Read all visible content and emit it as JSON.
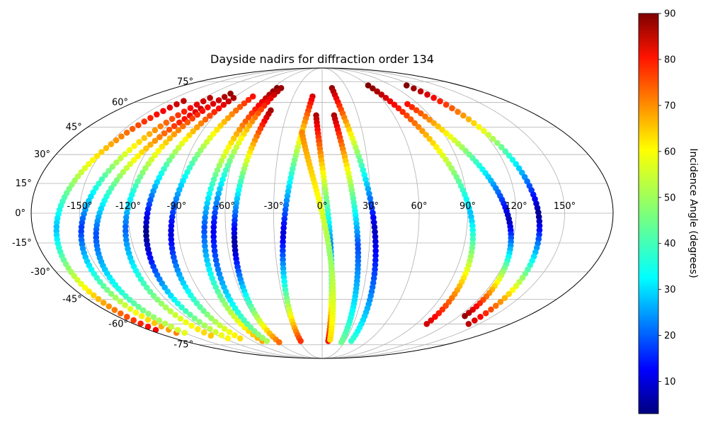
{
  "chart_data": {
    "type": "scatter",
    "projection": "mollweide",
    "title": "Dayside nadirs for diffraction order 134",
    "grid": true,
    "colormap": "jet",
    "colorbar": {
      "label": "Incidence Angle (degrees)",
      "range": [
        3,
        90
      ],
      "ticks": [
        10,
        20,
        30,
        40,
        50,
        60,
        70,
        80,
        90
      ]
    },
    "longitude_ticks": [
      -150,
      -120,
      -90,
      -60,
      -30,
      0,
      30,
      60,
      90,
      120,
      150
    ],
    "latitude_ticks": [
      -75,
      -60,
      -45,
      -30,
      -15,
      0,
      15,
      30,
      45,
      60,
      75
    ],
    "longitude_tick_labels": [
      "-150°",
      "-120°",
      "-90°",
      "-60°",
      "-30°",
      "0°",
      "30°",
      "60°",
      "90°",
      "120°",
      "150°"
    ],
    "latitude_tick_labels": [
      "-75°",
      "-60°",
      "-45°",
      "-30°",
      "-15°",
      "0°",
      "15°",
      "30°",
      "45°",
      "60°",
      "75°"
    ],
    "tracks": [
      {
        "lon_start": -135,
        "lon_end": -173,
        "lat_start": 61,
        "lat_end": -64,
        "inc_start": 85,
        "inc_end": 80,
        "min_inc": 30
      },
      {
        "lon_start": -114,
        "lon_end": -159,
        "lat_start": 63,
        "lat_end": -66,
        "inc_start": 85,
        "inc_end": 68,
        "min_inc": 18
      },
      {
        "lon_start": -108,
        "lon_end": -150,
        "lat_start": 56,
        "lat_end": -66,
        "inc_start": 84,
        "inc_end": 55,
        "min_inc": 20
      },
      {
        "lon_start": -100,
        "lon_end": -128,
        "lat_start": 66,
        "lat_end": -68,
        "inc_start": 88,
        "inc_end": 62,
        "min_inc": 22
      },
      {
        "lon_start": -90,
        "lon_end": -115,
        "lat_start": 63,
        "lat_end": -70,
        "inc_start": 86,
        "inc_end": 58,
        "min_inc": 3
      },
      {
        "lon_start": -72,
        "lon_end": -100,
        "lat_start": 64,
        "lat_end": -70,
        "inc_start": 78,
        "inc_end": 60,
        "min_inc": 10
      },
      {
        "lon_start": -55,
        "lon_end": -78,
        "lat_start": 70,
        "lat_end": -72,
        "inc_start": 90,
        "inc_end": 65,
        "min_inc": 20
      },
      {
        "lon_start": -50,
        "lon_end": -72,
        "lat_start": 70,
        "lat_end": -72,
        "inc_start": 88,
        "inc_end": 50,
        "min_inc": 12
      },
      {
        "lon_start": -45,
        "lon_end": -58,
        "lat_start": 55,
        "lat_end": -73,
        "inc_start": 87,
        "inc_end": 70,
        "min_inc": 5
      },
      {
        "lon_start": -10,
        "lon_end": -28,
        "lat_start": 64,
        "lat_end": -72,
        "inc_start": 82,
        "inc_end": 75,
        "min_inc": 10
      },
      {
        "lon_start": -5,
        "lon_end": 8,
        "lat_start": 52,
        "lat_end": -72,
        "inc_start": 86,
        "inc_end": 80,
        "min_inc": 25
      },
      {
        "lon_start": -15,
        "lon_end": 10,
        "lat_start": 42,
        "lat_end": -71,
        "inc_start": 68,
        "inc_end": 60,
        "min_inc": 48
      },
      {
        "lon_start": 10,
        "lon_end": 26,
        "lat_start": 52,
        "lat_end": -73,
        "inc_start": 86,
        "inc_end": 45,
        "min_inc": 20
      },
      {
        "lon_start": 12,
        "lon_end": 38,
        "lat_start": 70,
        "lat_end": -72,
        "inc_start": 88,
        "inc_end": 40,
        "min_inc": 8
      },
      {
        "lon_start": 60,
        "lon_end": 100,
        "lat_start": 72,
        "lat_end": -60,
        "inc_start": 90,
        "inc_end": 83,
        "min_inc": 30
      },
      {
        "lon_start": 80,
        "lon_end": 125,
        "lat_start": 59,
        "lat_end": -55,
        "inc_start": 78,
        "inc_end": 88,
        "min_inc": 7
      },
      {
        "lon_start": 110,
        "lon_end": 140,
        "lat_start": 72,
        "lat_end": -60,
        "inc_start": 90,
        "inc_end": 85,
        "min_inc": 4
      }
    ]
  }
}
